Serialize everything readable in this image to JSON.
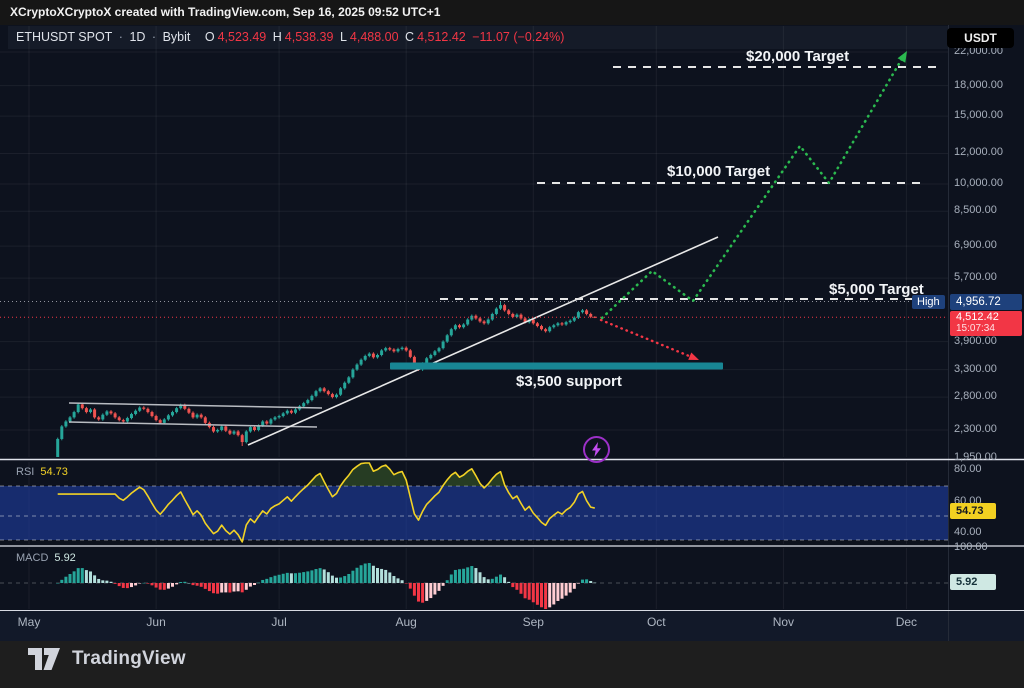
{
  "attribution": {
    "text": "XCryptoXCryptoX created with TradingView.com, Sep 16, 2025 09:52 UTC+1"
  },
  "legend": {
    "symbol": "ETHUSDT SPOT",
    "dot": "·",
    "interval": "1D",
    "exchange": "Bybit",
    "o_label": "O",
    "o": "4,523.49",
    "h_label": "H",
    "h": "4,538.39",
    "l_label": "L",
    "l": "4,488.00",
    "c_label": "C",
    "c": "4,512.42",
    "change": "−11.07 (−0.24%)"
  },
  "annotations": {
    "target_20k": "$20,000 Target",
    "target_10k": "$10,000 Target",
    "target_5k": "$5,000 Target",
    "support": "$3,500 support"
  },
  "indicators": {
    "rsi_label": "RSI",
    "rsi_value": "54.73",
    "macd_label": "MACD",
    "macd_value": "5.92"
  },
  "axis": {
    "currency_button": "USDT",
    "high_label": "High",
    "high_value": "4,956.72",
    "last_price": "4,512.42",
    "countdown": "15:07:34",
    "macd_top_tick": "100.00"
  },
  "branding": {
    "logo_text": "TradingView"
  },
  "colors": {
    "background": "#0d121e",
    "up": "#26a69a",
    "down": "#ef5350",
    "up_faded": "#b2dfdb",
    "down_faded": "#ffcdd2",
    "badge_blue": "#1e417c",
    "badge_red": "#f23645",
    "rsi_yellow": "#f2d225",
    "rsi_band_blue": "#1f3da0",
    "support_teal": "#188694",
    "projection_green": "#2bb94f",
    "trendline_white": "#e8e8e8",
    "grid": "rgba(255,255,255,0.06)"
  },
  "chart_data": {
    "type": "candlestick",
    "title": "ETHUSDT SPOT 1D Bybit with $5,000 / $10,000 / $20,000 targets and $3,500 support",
    "symbol": "ETHUSDT SPOT",
    "interval": "1D",
    "exchange": "Bybit",
    "x_axis": "time (daily, May 2025 – Dec 2025 shown)",
    "y_axis": "price (USDT, log scale)",
    "months": [
      "May",
      "Jun",
      "Jul",
      "Aug",
      "Sep",
      "Oct",
      "Nov",
      "Dec"
    ],
    "price_axis_ticks": [
      22000,
      18000,
      15000,
      12000,
      10000,
      8500,
      6900,
      5700,
      3900,
      3300,
      2800,
      2300,
      1950
    ],
    "first_open": 1910,
    "closes": [
      2180,
      2350,
      2420,
      2480,
      2560,
      2680,
      2620,
      2560,
      2600,
      2480,
      2450,
      2520,
      2570,
      2540,
      2480,
      2440,
      2420,
      2470,
      2530,
      2580,
      2630,
      2610,
      2560,
      2500,
      2440,
      2400,
      2450,
      2510,
      2560,
      2620,
      2670,
      2610,
      2550,
      2480,
      2520,
      2480,
      2400,
      2340,
      2280,
      2300,
      2350,
      2290,
      2250,
      2280,
      2230,
      2140,
      2280,
      2340,
      2300,
      2360,
      2420,
      2390,
      2450,
      2480,
      2500,
      2540,
      2580,
      2550,
      2600,
      2650,
      2700,
      2750,
      2820,
      2900,
      2950,
      2900,
      2850,
      2800,
      2840,
      2950,
      3050,
      3150,
      3300,
      3400,
      3500,
      3580,
      3630,
      3550,
      3600,
      3700,
      3750,
      3720,
      3680,
      3730,
      3760,
      3700,
      3560,
      3380,
      3300,
      3420,
      3530,
      3600,
      3680,
      3750,
      3900,
      4050,
      4200,
      4300,
      4250,
      4320,
      4450,
      4550,
      4480,
      4400,
      4350,
      4450,
      4600,
      4750,
      4850,
      4700,
      4600,
      4520,
      4580,
      4480,
      4380,
      4450,
      4350,
      4280,
      4200,
      4150,
      4250,
      4300,
      4350,
      4320,
      4380,
      4420,
      4500,
      4650,
      4700,
      4600,
      4523.49,
      4512.42
    ],
    "overrides": [
      {
        "index": 45,
        "low": 2090
      },
      {
        "index": 108,
        "high": 4956.72
      },
      {
        "index": 131,
        "open": 4523.49,
        "high": 4538.39,
        "low": 4488.0,
        "close": 4512.42
      }
    ],
    "last_candle": {
      "open": 4523.49,
      "high": 4538.39,
      "low": 4488.0,
      "close": 4512.42,
      "change": -11.07,
      "change_pct": -0.24
    },
    "all_time_high": 4956.72,
    "targets": [
      5000,
      10000,
      20000
    ],
    "support_level": 3500,
    "rsi": {
      "period": 14,
      "last": 54.73,
      "band": [
        30,
        70
      ],
      "visible_ticks": [
        80,
        60,
        40
      ]
    },
    "macd": {
      "fast": 12,
      "slow": 26,
      "signal": 9,
      "last_histogram": 5.92,
      "visible_tick": 100
    },
    "projection": "green dotted zig-zag from last price up through $5,000, $10,000 to $20,000; red dotted arrow down to $3,500 support"
  }
}
